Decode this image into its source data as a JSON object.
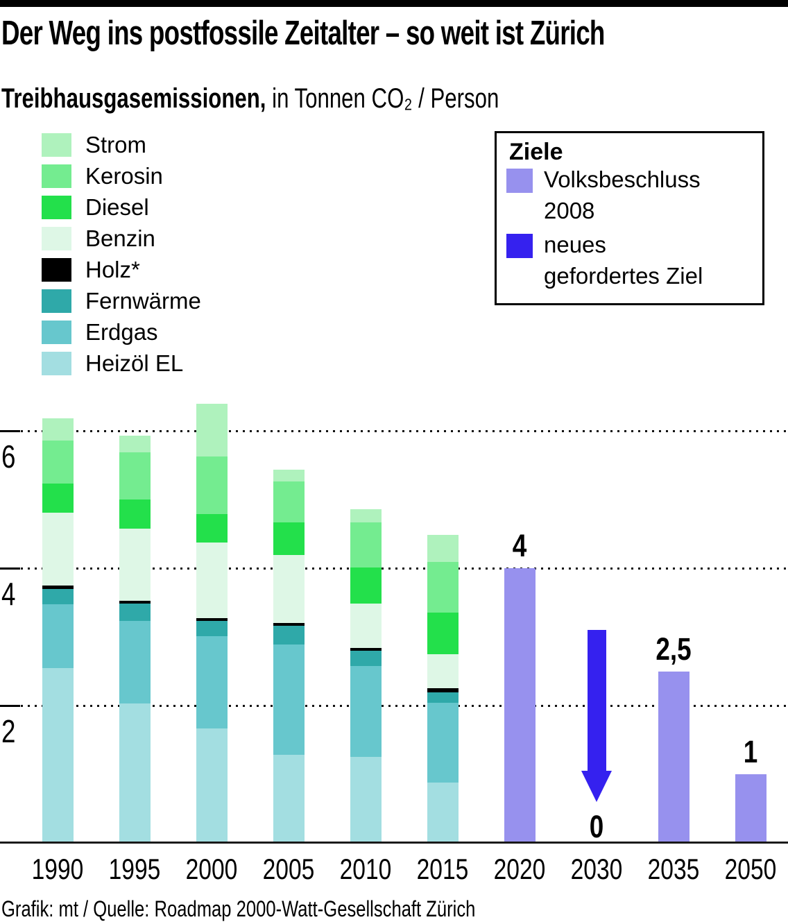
{
  "header": {
    "title": "Der Weg ins postfossile Zeitalter – so weit ist Zürich",
    "subtitle_bold": "Treibhausgasemissionen,",
    "subtitle_rest": " in Tonnen CO₂ / Person"
  },
  "legend": {
    "items": [
      {
        "label": "Strom",
        "color": "#aff2bd"
      },
      {
        "label": "Kerosin",
        "color": "#74ec90"
      },
      {
        "label": "Diesel",
        "color": "#23e04b"
      },
      {
        "label": "Benzin",
        "color": "#def7e6"
      },
      {
        "label": "Holz*",
        "color": "#000000"
      },
      {
        "label": "Fernwärme",
        "color": "#2fa9a9"
      },
      {
        "label": "Erdgas",
        "color": "#67c7cd"
      },
      {
        "label": "Heizöl EL",
        "color": "#a3dee1"
      }
    ]
  },
  "goals_box": {
    "title": "Ziele",
    "items": [
      {
        "lines": [
          "Volksbeschluss",
          "2008"
        ],
        "color": "#9791ee"
      },
      {
        "lines": [
          "neues",
          "gefordertes Ziel"
        ],
        "color": "#3521ef"
      }
    ]
  },
  "chart_data": {
    "type": "bar",
    "stacked": true,
    "title": "Treibhausgasemissionen",
    "ylabel": "Tonnen CO₂ / Person",
    "ylim": [
      0,
      6.8
    ],
    "grid": "dotted horizontal lines at yticks",
    "categories": [
      "1990",
      "1995",
      "2000",
      "2005",
      "2010",
      "2015",
      "2020",
      "2030",
      "2035",
      "2050"
    ],
    "yticks": [
      {
        "value": 6,
        "label": "6"
      },
      {
        "value": 4,
        "label": "4"
      },
      {
        "value": 2,
        "label": "2"
      }
    ],
    "stack_years": [
      "1990",
      "1995",
      "2000",
      "2005",
      "2010",
      "2015"
    ],
    "series": [
      {
        "name": "Heizöl EL",
        "color": "#a3dee1",
        "values": [
          2.55,
          2.03,
          1.67,
          1.28,
          1.25,
          0.88
        ]
      },
      {
        "name": "Erdgas",
        "color": "#67c7cd",
        "values": [
          0.92,
          1.2,
          1.34,
          1.61,
          1.33,
          1.16
        ]
      },
      {
        "name": "Fernwärme",
        "color": "#2fa9a9",
        "values": [
          0.23,
          0.25,
          0.22,
          0.27,
          0.22,
          0.15
        ]
      },
      {
        "name": "Holz*",
        "color": "#000000",
        "values": [
          0.05,
          0.05,
          0.04,
          0.04,
          0.04,
          0.06
        ]
      },
      {
        "name": "Benzin",
        "color": "#def7e6",
        "values": [
          1.06,
          1.05,
          1.1,
          0.99,
          0.64,
          0.5
        ]
      },
      {
        "name": "Diesel",
        "color": "#23e04b",
        "values": [
          0.42,
          0.42,
          0.42,
          0.48,
          0.53,
          0.6
        ]
      },
      {
        "name": "Kerosin",
        "color": "#74ec90",
        "values": [
          0.63,
          0.69,
          0.84,
          0.59,
          0.66,
          0.74
        ]
      },
      {
        "name": "Strom",
        "color": "#aff2bd",
        "values": [
          0.32,
          0.24,
          0.76,
          0.17,
          0.19,
          0.39
        ]
      }
    ],
    "stack_totals": [
      6.18,
      5.93,
      6.39,
      5.43,
      4.86,
      4.48
    ],
    "goals": {
      "bar_color": "#9791ee",
      "arrow_color": "#3521ef",
      "bars": [
        {
          "year": "2020",
          "value": 4,
          "label": "4"
        },
        {
          "year": "2035",
          "value": 2.5,
          "label": "2,5"
        },
        {
          "year": "2050",
          "value": 1,
          "label": "1"
        }
      ],
      "arrow": {
        "year": "2030",
        "from": 3.1,
        "to": 0.6,
        "label": "0"
      }
    }
  },
  "footer": {
    "credit": "Grafik: mt / Quelle: Roadmap 2000-Watt-Gesellschaft Zürich"
  }
}
